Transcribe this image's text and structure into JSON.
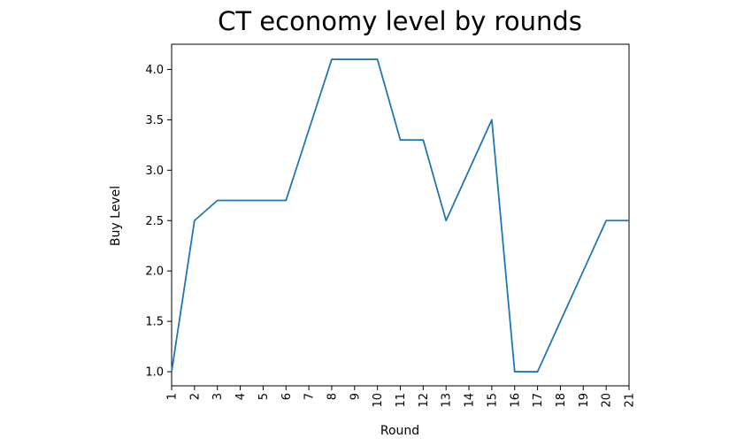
{
  "chart_data": {
    "type": "line",
    "title": "CT economy level by rounds",
    "xlabel": "Round",
    "ylabel": "Buy Level",
    "x": [
      "1",
      "2",
      "3",
      "4",
      "5",
      "6",
      "7",
      "8",
      "9",
      "10",
      "11",
      "12",
      "13",
      "14",
      "15",
      "16",
      "17",
      "18",
      "19",
      "20",
      "21"
    ],
    "series": [
      {
        "values": [
          1.0,
          2.5,
          2.7,
          2.7,
          2.7,
          2.7,
          3.4,
          4.1,
          4.1,
          4.1,
          3.3,
          3.3,
          2.5,
          3.0,
          3.5,
          1.0,
          1.0,
          1.5,
          2.0,
          2.5,
          2.5
        ],
        "color": "#1f77b4"
      }
    ],
    "yticks": [
      "1.0",
      "1.5",
      "2.0",
      "2.5",
      "3.0",
      "3.5",
      "4.0"
    ],
    "ylim": [
      0.86,
      4.25
    ],
    "grid": false,
    "legend": "none"
  }
}
